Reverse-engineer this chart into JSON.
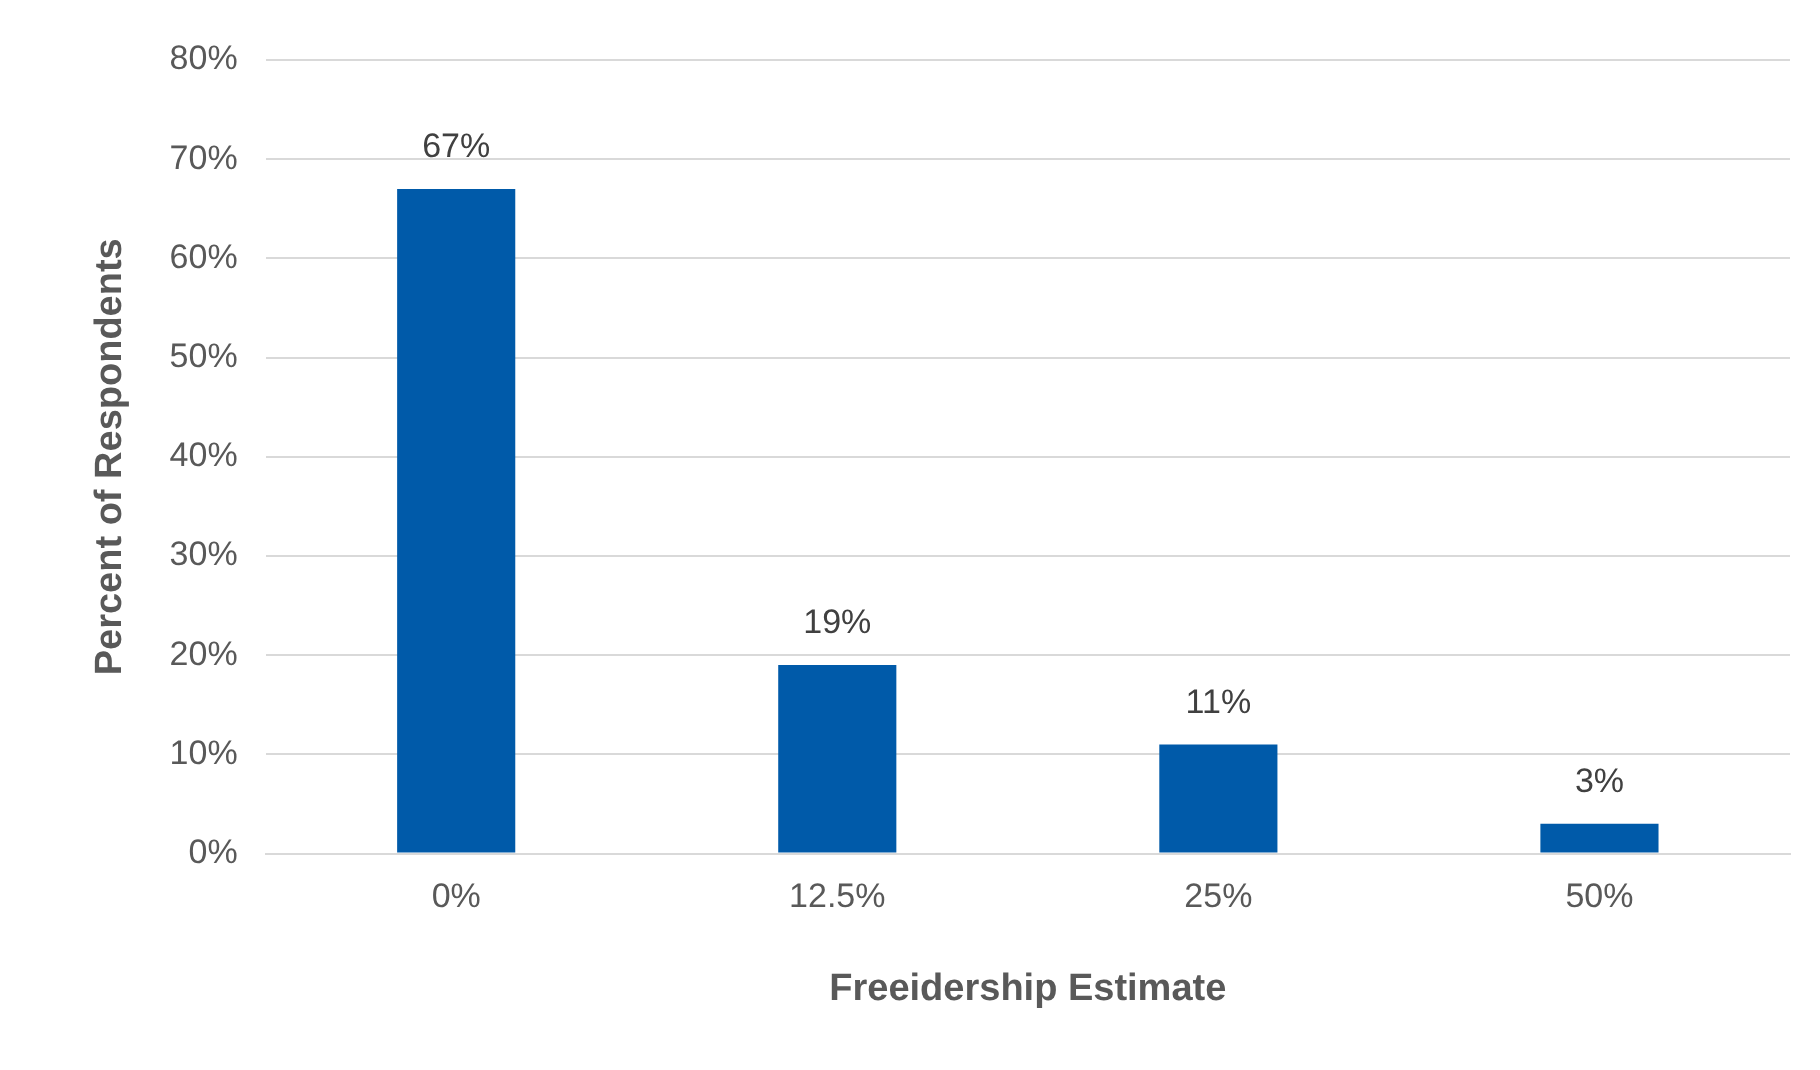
{
  "chart_data": {
    "type": "bar",
    "xlabel": "Freeidership Estimate",
    "ylabel": "Percent of Respondents",
    "categories": [
      "0%",
      "12.5%",
      "25%",
      "50%"
    ],
    "values": [
      67,
      19,
      11,
      3
    ],
    "color": "#005aa9",
    "ylim": [
      0,
      80
    ],
    "yticks": [
      {
        "value": 0,
        "label": "0%"
      },
      {
        "value": 10,
        "label": "10%"
      },
      {
        "value": 20,
        "label": "20%"
      },
      {
        "value": 30,
        "label": "30%"
      },
      {
        "value": 40,
        "label": "40%"
      },
      {
        "value": 50,
        "label": "50%"
      },
      {
        "value": 60,
        "label": "60%"
      },
      {
        "value": 70,
        "label": "70%"
      },
      {
        "value": 80,
        "label": "80%"
      }
    ],
    "value_labels": [
      "67%",
      "19%",
      "11%",
      "3%"
    ],
    "grid": "y",
    "legend": false
  }
}
